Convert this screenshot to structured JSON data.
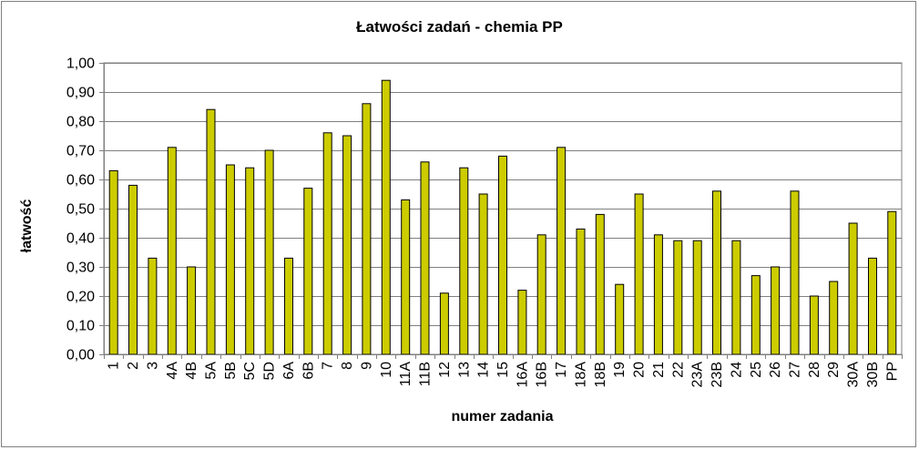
{
  "chart_data": {
    "type": "bar",
    "title": "Łatwości zadań - chemia PP",
    "xlabel": "numer zadania",
    "ylabel": "łatwość",
    "ylim": [
      0,
      1
    ],
    "yticks": [
      "0,00",
      "0,10",
      "0,20",
      "0,30",
      "0,40",
      "0,50",
      "0,60",
      "0,70",
      "0,80",
      "0,90",
      "1,00"
    ],
    "grid": true,
    "legend": "none",
    "bar_color": "#cccc00",
    "categories": [
      "1",
      "2",
      "3",
      "4A",
      "4B",
      "5A",
      "5B",
      "5C",
      "5D",
      "6A",
      "6B",
      "7",
      "8",
      "9",
      "10",
      "11A",
      "11B",
      "12",
      "13",
      "14",
      "15",
      "16A",
      "16B",
      "17",
      "18A",
      "18B",
      "19",
      "20",
      "21",
      "22",
      "23A",
      "23B",
      "24",
      "25",
      "26",
      "27",
      "28",
      "29",
      "30A",
      "30B",
      "PP"
    ],
    "values": [
      0.63,
      0.58,
      0.33,
      0.71,
      0.3,
      0.84,
      0.65,
      0.64,
      0.7,
      0.33,
      0.57,
      0.76,
      0.75,
      0.86,
      0.94,
      0.53,
      0.66,
      0.21,
      0.64,
      0.55,
      0.68,
      0.22,
      0.41,
      0.71,
      0.43,
      0.48,
      0.24,
      0.55,
      0.41,
      0.39,
      0.39,
      0.56,
      0.39,
      0.27,
      0.3,
      0.56,
      0.2,
      0.25,
      0.45,
      0.33,
      0.49
    ]
  }
}
